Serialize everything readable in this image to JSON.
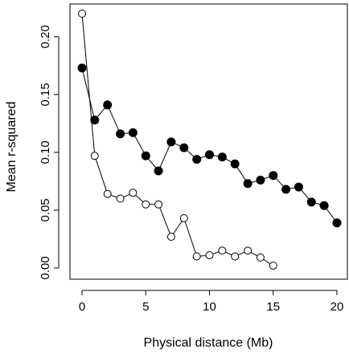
{
  "chart_data": {
    "type": "line",
    "title": "",
    "xlabel": "Physical distance (Mb)",
    "ylabel": "Mean r-squared",
    "xlim": [
      0,
      20
    ],
    "ylim": [
      0,
      0.22
    ],
    "grid": false,
    "x_ticks": [
      0,
      5,
      10,
      15,
      20
    ],
    "x_tick_labels": [
      "0",
      "5",
      "10",
      "15",
      "20"
    ],
    "y_ticks": [
      0.0,
      0.05,
      0.1,
      0.15,
      0.2
    ],
    "y_tick_labels": [
      "0.00",
      "0.05",
      "0.10",
      "0.15",
      "0.20"
    ],
    "series": [
      {
        "marker": "filled-circle",
        "x": [
          0,
          1,
          2,
          3,
          4,
          5,
          6,
          7,
          8,
          9,
          10,
          11,
          12,
          13,
          14,
          15,
          16,
          17,
          18,
          19,
          20
        ],
        "y": [
          0.173,
          0.128,
          0.141,
          0.116,
          0.117,
          0.097,
          0.084,
          0.109,
          0.104,
          0.094,
          0.098,
          0.096,
          0.09,
          0.073,
          0.076,
          0.08,
          0.068,
          0.07,
          0.057,
          0.054,
          0.039
        ]
      },
      {
        "marker": "open-circle",
        "x": [
          0,
          1,
          2,
          3,
          4,
          5,
          6,
          7,
          8,
          9,
          10,
          11,
          12,
          13,
          14,
          15
        ],
        "y": [
          0.22,
          0.097,
          0.064,
          0.06,
          0.065,
          0.055,
          0.055,
          0.027,
          0.043,
          0.01,
          0.011,
          0.015,
          0.01,
          0.015,
          0.009,
          0.002
        ]
      }
    ]
  }
}
